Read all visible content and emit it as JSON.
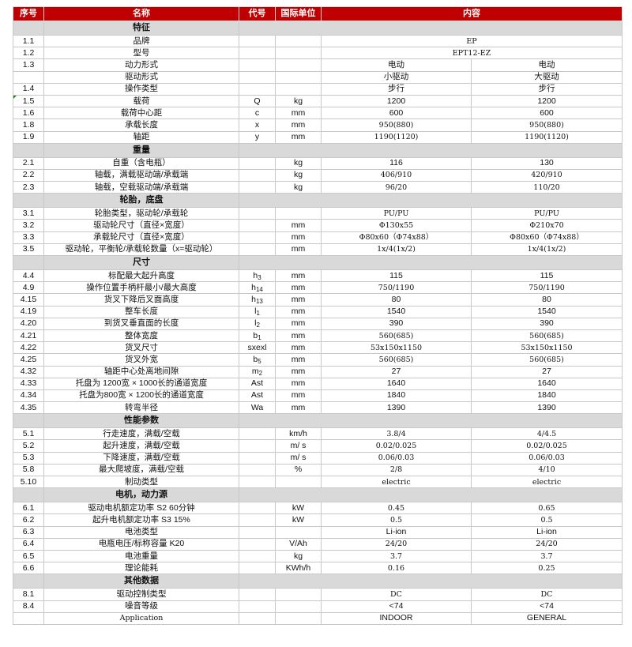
{
  "colors": {
    "header_bg": "#c00000",
    "section_bg": "#d9d9d9",
    "border": "#c8c8c8"
  },
  "header": {
    "no": "序号",
    "name": "名称",
    "code": "代号",
    "unit": "国际单位",
    "content": "内容"
  },
  "sections": [
    {
      "title": "特征",
      "rows": [
        {
          "no": "1.1",
          "name": "品牌",
          "code": "",
          "unit": "",
          "merged": "EP"
        },
        {
          "no": "1.2",
          "name": "型号",
          "code": "",
          "unit": "",
          "merged": "EPT12-EZ"
        },
        {
          "no": "1.3",
          "name": "动力形式",
          "code": "",
          "unit": "",
          "v1": "电动",
          "v2": "电动"
        },
        {
          "no": "",
          "name": "驱动形式",
          "code": "",
          "unit": "",
          "v1": "小驱动",
          "v2": "大驱动"
        },
        {
          "no": "1.4",
          "name": "操作类型",
          "code": "",
          "unit": "",
          "v1": "步行",
          "v2": "步行"
        },
        {
          "no": "1.5",
          "name": "载荷",
          "code": "Q",
          "unit": "kg",
          "v1": "1200",
          "v2": "1200"
        },
        {
          "no": "1.6",
          "name": "载荷中心距",
          "code": "c",
          "unit": "mm",
          "v1": "600",
          "v2": "600"
        },
        {
          "no": "1.8",
          "name": "承载长度",
          "code": "x",
          "unit": "mm",
          "v1": "950(880)",
          "v2": "950(880)"
        },
        {
          "no": "1.9",
          "name": "轴距",
          "code": "y",
          "unit": "mm",
          "v1": "1190(1120)",
          "v2": "1190(1120)"
        }
      ]
    },
    {
      "title": "重量",
      "rows": [
        {
          "no": "2.1",
          "name": "自重（含电瓶）",
          "code": "",
          "unit": "kg",
          "v1": "116",
          "v2": "130"
        },
        {
          "no": "2.2",
          "name": "轴载，满载驱动端/承载端",
          "code": "",
          "unit": "kg",
          "v1": "406/910",
          "v2": "420/910"
        },
        {
          "no": "2.3",
          "name": "轴载，空载驱动端/承载端",
          "code": "",
          "unit": "kg",
          "v1": "96/20",
          "v2": "110/20"
        }
      ]
    },
    {
      "title": "轮胎，底盘",
      "rows": [
        {
          "no": "3.1",
          "name": "轮胎类型，驱动轮/承载轮",
          "code": "",
          "unit": "",
          "v1": "PU/PU",
          "v2": "PU/PU"
        },
        {
          "no": "3.2",
          "name": "驱动轮尺寸（直径×宽度）",
          "code": "",
          "unit": "mm",
          "v1": "Φ130x55",
          "v2": "Φ210x70"
        },
        {
          "no": "3.3",
          "name": "承载轮尺寸（直径×宽度）",
          "code": "",
          "unit": "mm",
          "v1": "Φ80x60（Φ74x88）",
          "v2": "Φ80x60（Φ74x88）"
        },
        {
          "no": "3.5",
          "name": "驱动轮，平衡轮/承载轮数量（x=驱动轮）",
          "code": "",
          "unit": "mm",
          "v1": "1x/4(1x/2)",
          "v2": "1x/4(1x/2)"
        }
      ]
    },
    {
      "title": "尺寸",
      "rows": [
        {
          "no": "4.4",
          "name": "标配最大起升高度",
          "code": "h",
          "sub": "3",
          "unit": "mm",
          "v1": "115",
          "v2": "115"
        },
        {
          "no": "4.9",
          "name": "操作位置手柄杆最小/最大高度",
          "code": "h",
          "sub": "14",
          "unit": "mm",
          "v1": "750/1190",
          "v2": "750/1190"
        },
        {
          "no": "4.15",
          "name": "货叉下降后叉面高度",
          "code": "h",
          "sub": "13",
          "unit": "mm",
          "v1": "80",
          "v2": "80"
        },
        {
          "no": "4.19",
          "name": "整车长度",
          "code": "l",
          "sub": "1",
          "unit": "mm",
          "v1": "1540",
          "v2": "1540"
        },
        {
          "no": "4.20",
          "name": "到货叉垂直面的长度",
          "code": "l",
          "sub": "2",
          "unit": "mm",
          "v1": "390",
          "v2": "390"
        },
        {
          "no": "4.21",
          "name": "整体宽度",
          "code": "b",
          "sub": "1",
          "unit": "mm",
          "v1": "560(685)",
          "v2": "560(685)"
        },
        {
          "no": "4.22",
          "name": "货叉尺寸",
          "code": "sxexl",
          "unit": "mm",
          "v1": "53x150x1150",
          "v2": "53x150x1150"
        },
        {
          "no": "4.25",
          "name": "货叉外宽",
          "code": "b",
          "sub": "5",
          "unit": "mm",
          "v1": "560(685)",
          "v2": "560(685)"
        },
        {
          "no": "4.32",
          "name": "轴距中心处离地间隙",
          "code": "m",
          "sub": "2",
          "unit": "mm",
          "v1": "27",
          "v2": "27"
        },
        {
          "no": "4.33",
          "name": "托盘为 1200宽 × 1000长的通道宽度",
          "code": "Ast",
          "unit": "mm",
          "v1": "1640",
          "v2": "1640"
        },
        {
          "no": "4.34",
          "name": "托盘为800宽 × 1200长的通道宽度",
          "code": "Ast",
          "unit": "mm",
          "v1": "1840",
          "v2": "1840"
        },
        {
          "no": "4.35",
          "name": "转弯半径",
          "code": "Wa",
          "unit": "mm",
          "v1": "1390",
          "v2": "1390"
        }
      ]
    },
    {
      "title": "性能参数",
      "rows": [
        {
          "no": "5.1",
          "name": "行走速度，满载/空载",
          "code": "",
          "unit": "km/h",
          "v1": "3.8/4",
          "v2": "4/4.5"
        },
        {
          "no": "5.2",
          "name": "起升速度，满载/空载",
          "code": "",
          "unit": "m/ s",
          "v1": "0.02/0.025",
          "v2": "0.02/0.025"
        },
        {
          "no": "5.3",
          "name": "下降速度，满载/空载",
          "code": "",
          "unit": "m/ s",
          "v1": "0.06/0.03",
          "v2": "0.06/0.03"
        },
        {
          "no": "5.8",
          "name": "最大爬坡度，满载/空载",
          "code": "",
          "unit": "%",
          "v1": "2/8",
          "v2": "4/10"
        },
        {
          "no": "5.10",
          "name": "制动类型",
          "code": "",
          "unit": "",
          "v1": "electric",
          "v2": "electric",
          "serif": true
        }
      ]
    },
    {
      "title": "电机，动力源",
      "rows": [
        {
          "no": "6.1",
          "name": "驱动电机额定功率 S2 60分钟",
          "code": "",
          "unit": "kW",
          "v1": "0.45",
          "v2": "0.65"
        },
        {
          "no": "6.2",
          "name": "起升电机额定功率 S3 15%",
          "code": "",
          "unit": "kW",
          "v1": "0.5",
          "v2": "0.5"
        },
        {
          "no": "6.3",
          "name": "电池类型",
          "code": "",
          "unit": "",
          "v1": "Li-ion",
          "v2": "Li-ion"
        },
        {
          "no": "6.4",
          "name": "电瓶电压/标称容量 K20",
          "code": "",
          "unit": "V/Ah",
          "v1": "24/20",
          "v2": "24/20"
        },
        {
          "no": "6.5",
          "name": "电池重量",
          "code": "",
          "unit": "kg",
          "v1": "3.7",
          "v2": "3.7"
        },
        {
          "no": "6.6",
          "name": "理论能耗",
          "code": "",
          "unit": "KWh/h",
          "v1": "0.16",
          "v2": "0.25"
        }
      ]
    },
    {
      "title": "其他数据",
      "rows": [
        {
          "no": "8.1",
          "name": "驱动控制类型",
          "code": "",
          "unit": "",
          "v1": "DC",
          "v2": "DC"
        },
        {
          "no": "8.4",
          "name": "噪音等级",
          "code": "",
          "unit": "",
          "v1": "<74",
          "v2": "<74"
        },
        {
          "no": "",
          "name": "Application",
          "code": "",
          "unit": "",
          "v1": "INDOOR",
          "v2": "GENERAL"
        }
      ]
    }
  ]
}
